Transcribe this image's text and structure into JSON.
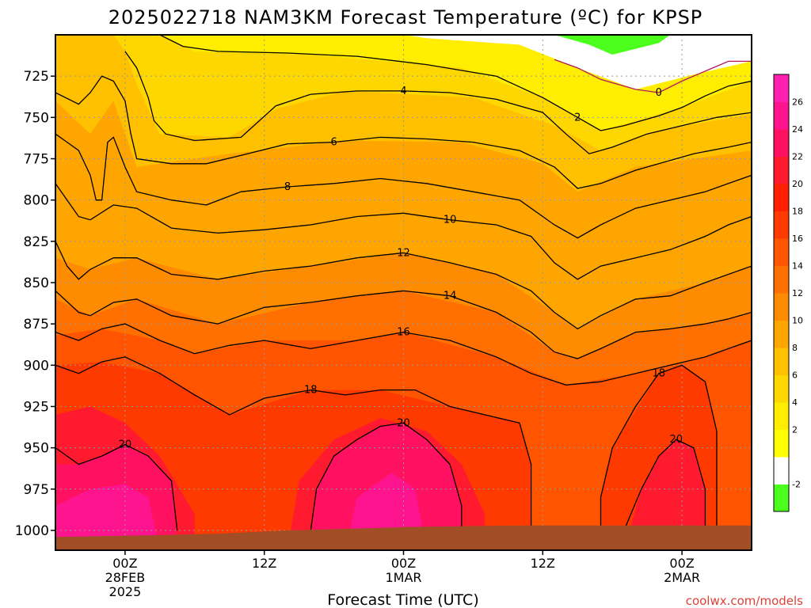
{
  "chart_data": {
    "type": "heatmap",
    "title": "2025022718 NAM3KM Forecast Temperature (ºC) for KPSP",
    "xlabel": "Forecast Time (UTC)",
    "ylabel": "",
    "y_axis_ticks": [
      725,
      750,
      775,
      800,
      825,
      850,
      875,
      900,
      925,
      950,
      975,
      1000
    ],
    "ylim_hpa": [
      700,
      1012
    ],
    "x_axis_ticks": [
      {
        "hour": 6,
        "line1": "00Z",
        "line2": "28FEB",
        "line3": "2025"
      },
      {
        "hour": 18,
        "line1": "12Z",
        "line2": "",
        "line3": ""
      },
      {
        "hour": 30,
        "line1": "00Z",
        "line2": "1MAR",
        "line3": ""
      },
      {
        "hour": 42,
        "line1": "12Z",
        "line2": "",
        "line3": ""
      },
      {
        "hour": 54,
        "line1": "00Z",
        "line2": "2MAR",
        "line3": ""
      }
    ],
    "xlim_hours": [
      0,
      60
    ],
    "grid": true,
    "colorbar": {
      "levels": [
        -4,
        -2,
        0,
        2,
        4,
        6,
        8,
        10,
        12,
        14,
        16,
        18,
        20,
        22,
        24,
        26,
        28
      ],
      "tick_labels": [
        "-2",
        "2",
        "4",
        "6",
        "8",
        "10",
        "12",
        "14",
        "16",
        "18",
        "20",
        "22",
        "24",
        "26"
      ],
      "colors": [
        "#4cff1c",
        "#ffffff",
        "#ffff00",
        "#ffee00",
        "#ffd700",
        "#ffc000",
        "#ffa500",
        "#ff8c00",
        "#ff7000",
        "#ff5500",
        "#ff3a00",
        "#ff2000",
        "#ff1a30",
        "#ff1060",
        "#ff1490",
        "#ff20b0"
      ]
    },
    "contours": [
      {
        "label": "0",
        "pts": [
          [
            43,
            715
          ],
          [
            45,
            720
          ],
          [
            47,
            727
          ],
          [
            50,
            733
          ],
          [
            52,
            735
          ],
          [
            54,
            728
          ],
          [
            56,
            722
          ],
          [
            58,
            716
          ],
          [
            60,
            716
          ]
        ]
      },
      {
        "label": "2",
        "pts": [
          [
            9,
            700
          ],
          [
            11,
            707
          ],
          [
            14,
            710
          ],
          [
            20,
            711
          ],
          [
            26,
            713
          ],
          [
            32,
            718
          ],
          [
            38,
            725
          ],
          [
            42,
            738
          ],
          [
            45,
            750
          ],
          [
            47,
            758
          ],
          [
            49,
            755
          ],
          [
            52,
            749
          ],
          [
            54,
            744
          ],
          [
            56,
            737
          ],
          [
            58,
            731
          ],
          [
            60,
            728
          ]
        ]
      },
      {
        "label": "4",
        "pts": [
          [
            6,
            710
          ],
          [
            7,
            720
          ],
          [
            8,
            738
          ],
          [
            8.5,
            752
          ],
          [
            9.5,
            760
          ],
          [
            12,
            764
          ],
          [
            16,
            762
          ],
          [
            19,
            743
          ],
          [
            22,
            736
          ],
          [
            26,
            734
          ],
          [
            30,
            734
          ],
          [
            34,
            735
          ],
          [
            38,
            739
          ],
          [
            42,
            747
          ],
          [
            44,
            760
          ],
          [
            46,
            772
          ],
          [
            48,
            768
          ],
          [
            51,
            760
          ],
          [
            54,
            755
          ],
          [
            57,
            750
          ],
          [
            60,
            747
          ]
        ]
      },
      {
        "label": "6",
        "pts": [
          [
            0,
            735
          ],
          [
            2,
            742
          ],
          [
            3,
            735
          ],
          [
            4,
            725
          ],
          [
            5,
            728
          ],
          [
            6,
            740
          ],
          [
            6.5,
            760
          ],
          [
            7,
            775
          ],
          [
            10,
            778
          ],
          [
            13,
            778
          ],
          [
            16,
            773
          ],
          [
            20,
            766
          ],
          [
            24,
            765
          ],
          [
            28,
            762
          ],
          [
            32,
            763
          ],
          [
            36,
            765
          ],
          [
            40,
            770
          ],
          [
            43,
            780
          ],
          [
            45,
            793
          ],
          [
            47,
            790
          ],
          [
            50,
            782
          ],
          [
            52,
            778
          ],
          [
            55,
            772
          ],
          [
            58,
            768
          ],
          [
            60,
            765
          ]
        ]
      },
      {
        "label": "8",
        "pts": [
          [
            0,
            760
          ],
          [
            1,
            765
          ],
          [
            2,
            770
          ],
          [
            3,
            785
          ],
          [
            3.5,
            800
          ],
          [
            4,
            800
          ],
          [
            4.5,
            765
          ],
          [
            5,
            762
          ],
          [
            6,
            780
          ],
          [
            7,
            795
          ],
          [
            10,
            800
          ],
          [
            13,
            803
          ],
          [
            16,
            795
          ],
          [
            20,
            792
          ],
          [
            24,
            790
          ],
          [
            28,
            787
          ],
          [
            32,
            790
          ],
          [
            36,
            795
          ],
          [
            40,
            800
          ],
          [
            43,
            815
          ],
          [
            45,
            823
          ],
          [
            47,
            815
          ],
          [
            50,
            805
          ],
          [
            53,
            800
          ],
          [
            56,
            795
          ],
          [
            58,
            790
          ],
          [
            60,
            785
          ]
        ]
      },
      {
        "label": "10",
        "pts": [
          [
            0,
            790
          ],
          [
            2,
            810
          ],
          [
            3,
            812
          ],
          [
            5,
            803
          ],
          [
            7,
            805
          ],
          [
            10,
            817
          ],
          [
            14,
            820
          ],
          [
            18,
            818
          ],
          [
            22,
            815
          ],
          [
            26,
            810
          ],
          [
            30,
            808
          ],
          [
            34,
            812
          ],
          [
            38,
            815
          ],
          [
            41,
            822
          ],
          [
            43,
            838
          ],
          [
            45,
            848
          ],
          [
            47,
            840
          ],
          [
            50,
            835
          ],
          [
            53,
            830
          ],
          [
            56,
            822
          ],
          [
            58,
            815
          ],
          [
            60,
            810
          ]
        ]
      },
      {
        "label": "12",
        "pts": [
          [
            0,
            825
          ],
          [
            1,
            840
          ],
          [
            2,
            848
          ],
          [
            3,
            842
          ],
          [
            5,
            835
          ],
          [
            7,
            835
          ],
          [
            10,
            845
          ],
          [
            14,
            848
          ],
          [
            18,
            843
          ],
          [
            22,
            840
          ],
          [
            26,
            835
          ],
          [
            30,
            832
          ],
          [
            34,
            838
          ],
          [
            38,
            845
          ],
          [
            41,
            855
          ],
          [
            43,
            868
          ],
          [
            45,
            878
          ],
          [
            47,
            870
          ],
          [
            50,
            860
          ],
          [
            53,
            858
          ],
          [
            56,
            850
          ],
          [
            58,
            845
          ],
          [
            60,
            840
          ]
        ]
      },
      {
        "label": "14",
        "pts": [
          [
            0,
            855
          ],
          [
            2,
            868
          ],
          [
            3,
            870
          ],
          [
            5,
            862
          ],
          [
            7,
            860
          ],
          [
            10,
            870
          ],
          [
            14,
            875
          ],
          [
            18,
            865
          ],
          [
            22,
            862
          ],
          [
            26,
            858
          ],
          [
            30,
            855
          ],
          [
            34,
            858
          ],
          [
            38,
            868
          ],
          [
            41,
            880
          ],
          [
            43,
            892
          ],
          [
            45,
            896
          ],
          [
            47,
            890
          ],
          [
            50,
            880
          ],
          [
            53,
            878
          ],
          [
            56,
            875
          ],
          [
            58,
            872
          ],
          [
            60,
            868
          ]
        ]
      },
      {
        "label": "16",
        "pts": [
          [
            0,
            880
          ],
          [
            2,
            885
          ],
          [
            4,
            878
          ],
          [
            6,
            875
          ],
          [
            9,
            885
          ],
          [
            12,
            893
          ],
          [
            15,
            888
          ],
          [
            18,
            885
          ],
          [
            22,
            890
          ],
          [
            26,
            885
          ],
          [
            30,
            880
          ],
          [
            34,
            885
          ],
          [
            38,
            895
          ],
          [
            41,
            905
          ],
          [
            44,
            912
          ],
          [
            47,
            910
          ],
          [
            50,
            905
          ],
          [
            53,
            900
          ],
          [
            56,
            895
          ],
          [
            58,
            890
          ],
          [
            60,
            885
          ]
        ]
      },
      {
        "label": "18",
        "pts": [
          [
            0,
            900
          ],
          [
            2,
            905
          ],
          [
            4,
            898
          ],
          [
            6,
            895
          ],
          [
            9,
            905
          ],
          [
            12,
            918
          ],
          [
            15,
            930
          ],
          [
            18,
            920
          ],
          [
            22,
            915
          ],
          [
            25,
            918
          ],
          [
            28,
            915
          ],
          [
            31,
            915
          ],
          [
            34,
            925
          ],
          [
            37,
            930
          ],
          [
            40,
            935
          ],
          [
            41,
            960
          ],
          [
            41,
            1000
          ]
        ]
      },
      {
        "label": "20",
        "pts": [
          [
            0,
            950
          ],
          [
            2,
            960
          ],
          [
            4,
            955
          ],
          [
            6,
            948
          ],
          [
            8,
            955
          ],
          [
            10,
            970
          ],
          [
            10.5,
            1000
          ]
        ]
      },
      {
        "label": "20",
        "pts": [
          [
            22,
            1000
          ],
          [
            22.5,
            975
          ],
          [
            24,
            955
          ],
          [
            26,
            945
          ],
          [
            28,
            937
          ],
          [
            30,
            935
          ],
          [
            32,
            945
          ],
          [
            34,
            960
          ],
          [
            35,
            985
          ],
          [
            35,
            1000
          ]
        ]
      },
      {
        "label": "20",
        "pts": [
          [
            49,
            1000
          ],
          [
            50.5,
            975
          ],
          [
            52,
            955
          ],
          [
            53.5,
            945
          ],
          [
            55,
            950
          ],
          [
            56,
            975
          ],
          [
            56,
            1000
          ]
        ]
      },
      {
        "label": "18",
        "pts": [
          [
            47,
            1000
          ],
          [
            47,
            980
          ],
          [
            48,
            950
          ],
          [
            50,
            925
          ],
          [
            52,
            905
          ],
          [
            54,
            900
          ],
          [
            56,
            910
          ],
          [
            57,
            940
          ],
          [
            57,
            1000
          ]
        ]
      }
    ]
  },
  "watermark": "coolwx.com/models",
  "colors": {
    "ground": "#a14e27",
    "contour_zero": "#b5185c",
    "grid": "#999999"
  }
}
